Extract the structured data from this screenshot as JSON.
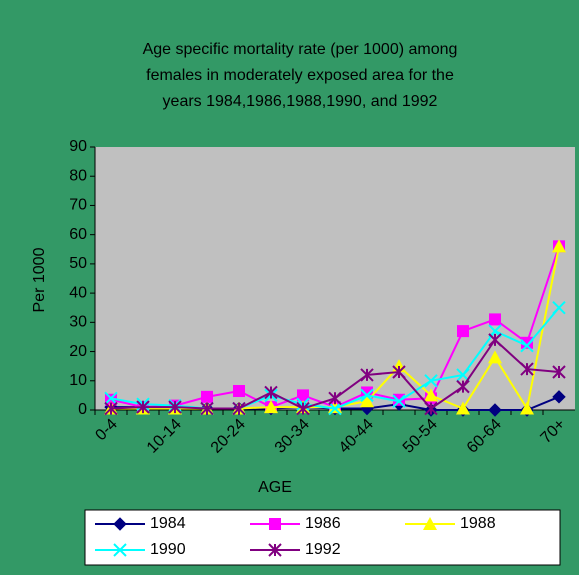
{
  "chart_data": {
    "type": "line",
    "title_lines": [
      "Age specific mortality rate (per 1000)  among",
      "females in moderately exposed area for the",
      "years 1984,1986,1988,1990, and 1992"
    ],
    "xlabel": "AGE",
    "ylabel": "Per 1000",
    "categories": [
      "0-4",
      null,
      "10-14",
      null,
      "20-24",
      null,
      "30-34",
      null,
      "40-44",
      null,
      "50-54",
      null,
      "60-64",
      null,
      "70+"
    ],
    "ylim": [
      0,
      90
    ],
    "yticks": [
      0,
      10,
      20,
      30,
      40,
      50,
      60,
      70,
      80,
      90
    ],
    "legend": "bottom",
    "series": [
      {
        "name": "1984",
        "color": "#000080",
        "marker": "diamond",
        "values": [
          1,
          1,
          1,
          0.5,
          0.5,
          0.5,
          1,
          0.5,
          0.5,
          2,
          0,
          0,
          0,
          0,
          4.5
        ]
      },
      {
        "name": "1986",
        "color": "#ff00ff",
        "marker": "square",
        "values": [
          3.5,
          1,
          1.5,
          4.5,
          6.5,
          1,
          5,
          1,
          6,
          3.5,
          4,
          27,
          31,
          23,
          56
        ]
      },
      {
        "name": "1988",
        "color": "#ffff00",
        "marker": "triangle",
        "values": [
          0.5,
          0.5,
          0.5,
          0.5,
          0.5,
          1,
          1,
          1,
          3,
          15,
          5,
          0.5,
          18,
          0.5,
          56
        ]
      },
      {
        "name": "1990",
        "color": "#00ffff",
        "marker": "x",
        "values": [
          4,
          2,
          1.5,
          0.5,
          0.5,
          5,
          2,
          0.5,
          5,
          3,
          10,
          12,
          27,
          22,
          35
        ]
      },
      {
        "name": "1992",
        "color": "#800080",
        "marker": "star",
        "values": [
          0.5,
          1,
          1,
          0.5,
          0.5,
          6,
          0.5,
          4,
          12,
          13,
          0.5,
          8,
          24,
          14,
          13
        ]
      }
    ]
  }
}
